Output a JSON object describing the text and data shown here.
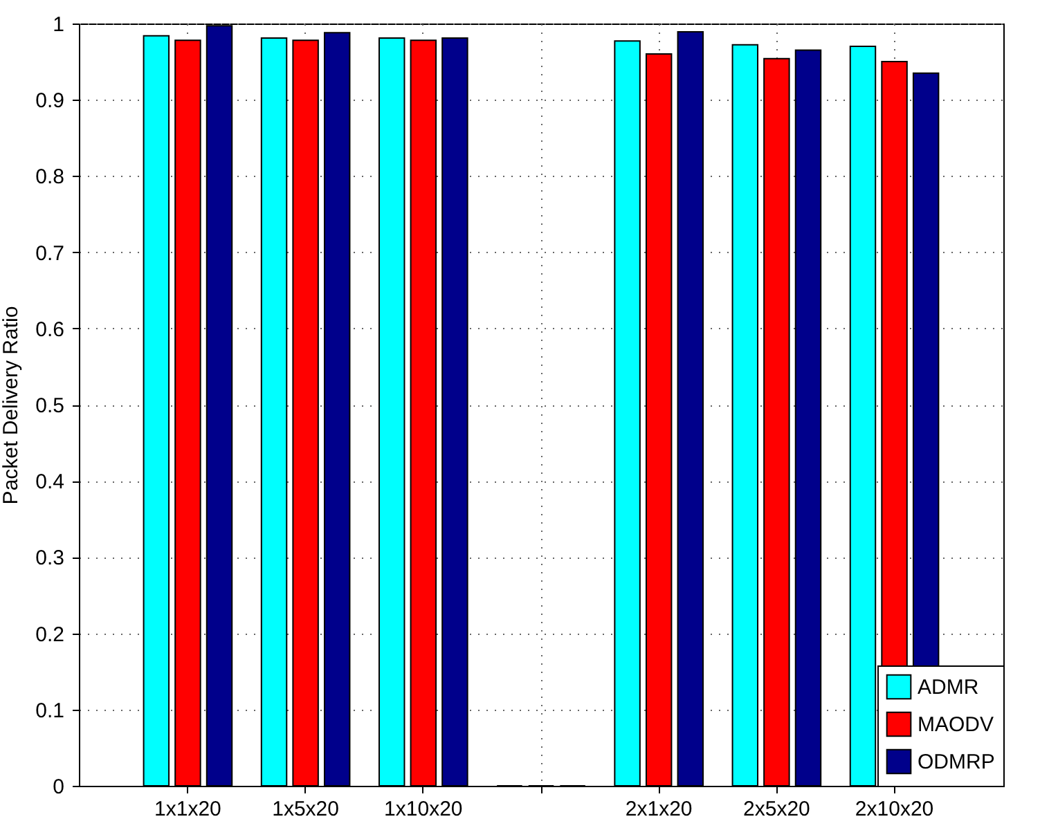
{
  "chart_data": {
    "type": "bar",
    "ylabel": "Packet Delivery Ratio",
    "categories": [
      "1x1x20",
      "1x5x20",
      "1x10x20",
      null,
      "2x1x20",
      "2x5x20",
      "2x10x20"
    ],
    "series": [
      {
        "name": "ADMR",
        "color": "#00ffff",
        "values": [
          0.984,
          0.981,
          0.981,
          0,
          0.977,
          0.972,
          0.97
        ]
      },
      {
        "name": "MAODV",
        "color": "#ff0000",
        "values": [
          0.978,
          0.978,
          0.978,
          0,
          0.96,
          0.954,
          0.95
        ]
      },
      {
        "name": "ODMRP",
        "color": "#00008b",
        "values": [
          0.997,
          0.988,
          0.981,
          0,
          0.989,
          0.965,
          0.935
        ]
      }
    ],
    "ylim": [
      0,
      1
    ],
    "yticks": [
      0,
      0.1,
      0.2,
      0.3,
      0.4,
      0.5,
      0.6,
      0.7,
      0.8,
      0.9,
      1
    ],
    "grid": true,
    "legend": "bottom right"
  }
}
